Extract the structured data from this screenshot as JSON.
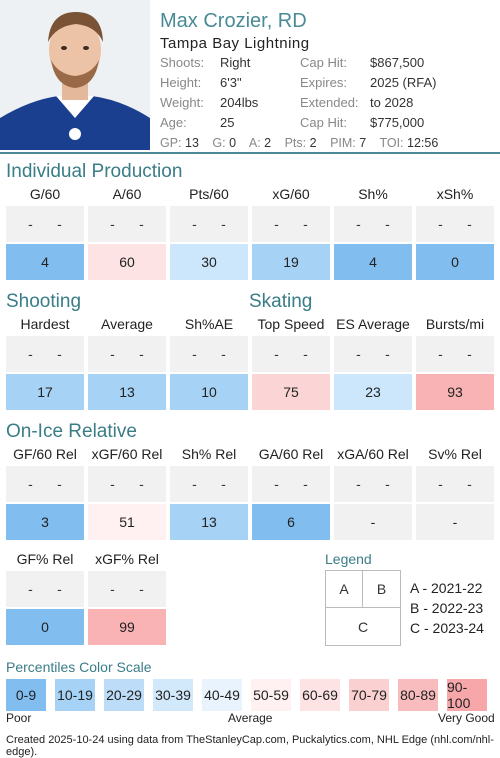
{
  "player": {
    "name": "Max Crozier, RD",
    "team": "Tampa Bay Lightning",
    "shoots_label": "Shoots:",
    "shoots": "Right",
    "height_label": "Height:",
    "height": "6'3\"",
    "weight_label": "Weight:",
    "weight": "204lbs",
    "age_label": "Age:",
    "age": "25",
    "caphit1_label": "Cap Hit:",
    "caphit1": "$867,500",
    "expires_label": "Expires:",
    "expires": "2025 (RFA)",
    "extended_label": "Extended:",
    "extended": "to 2028",
    "caphit2_label": "Cap Hit:",
    "caphit2": "$775,000"
  },
  "statline": {
    "gp_label": "GP:",
    "gp": "13",
    "g_label": "G:",
    "g": "0",
    "a_label": "A:",
    "a": "2",
    "pts_label": "Pts:",
    "pts": "2",
    "pim_label": "PIM:",
    "pim": "7",
    "toi_label": "TOI:",
    "toi": "12:56"
  },
  "sections": {
    "individual": "Individual Production",
    "shooting": "Shooting",
    "skating": "Skating",
    "onice": "On-Ice Relative"
  },
  "individual": [
    {
      "label": "G/60",
      "a": "-",
      "b": "-",
      "value": "4",
      "color": "#82bdf0"
    },
    {
      "label": "A/60",
      "a": "-",
      "b": "-",
      "value": "60",
      "color": "#fde3e3"
    },
    {
      "label": "Pts/60",
      "a": "-",
      "b": "-",
      "value": "30",
      "color": "#cce6fb"
    },
    {
      "label": "xG/60",
      "a": "-",
      "b": "-",
      "value": "19",
      "color": "#a6d2f6"
    },
    {
      "label": "Sh%",
      "a": "-",
      "b": "-",
      "value": "4",
      "color": "#82bdf0"
    },
    {
      "label": "xSh%",
      "a": "-",
      "b": "-",
      "value": "0",
      "color": "#82bdf0"
    }
  ],
  "shooting_skating": [
    {
      "label": "Hardest",
      "a": "-",
      "b": "-",
      "value": "17",
      "color": "#a6d2f6"
    },
    {
      "label": "Average",
      "a": "-",
      "b": "-",
      "value": "13",
      "color": "#a6d2f6"
    },
    {
      "label": "Sh%AE",
      "a": "-",
      "b": "-",
      "value": "10",
      "color": "#a6d2f6"
    },
    {
      "label": "Top Speed",
      "a": "-",
      "b": "-",
      "value": "75",
      "color": "#fbd5d5"
    },
    {
      "label": "ES Average",
      "a": "-",
      "b": "-",
      "value": "23",
      "color": "#cce6fb"
    },
    {
      "label": "Bursts/mi",
      "a": "-",
      "b": "-",
      "value": "93",
      "color": "#f9b3b5"
    }
  ],
  "onice": [
    {
      "label": "GF/60 Rel",
      "a": "-",
      "b": "-",
      "value": "3",
      "color": "#82bdf0"
    },
    {
      "label": "xGF/60 Rel",
      "a": "-",
      "b": "-",
      "value": "51",
      "color": "#fff1f1"
    },
    {
      "label": "Sh% Rel",
      "a": "-",
      "b": "-",
      "value": "13",
      "color": "#a6d2f6"
    },
    {
      "label": "GA/60 Rel",
      "a": "-",
      "b": "-",
      "value": "6",
      "color": "#82bdf0"
    },
    {
      "label": "xGA/60 Rel",
      "a": "-",
      "b": "-",
      "value": "-",
      "color": "#f1f1f1"
    },
    {
      "label": "Sv% Rel",
      "a": "-",
      "b": "-",
      "value": "-",
      "color": "#f1f1f1"
    }
  ],
  "onice2": [
    {
      "label": "GF% Rel",
      "a": "-",
      "b": "-",
      "value": "0",
      "color": "#82bdf0"
    },
    {
      "label": "xGF% Rel",
      "a": "-",
      "b": "-",
      "value": "99",
      "color": "#f9b3b5"
    }
  ],
  "legend": {
    "title": "Legend",
    "a": "A",
    "b": "B",
    "c": "C",
    "a_text": "A - 2021-22",
    "b_text": "B - 2022-23",
    "c_text": "C - 2023-24"
  },
  "scale": {
    "title": "Percentiles Color Scale",
    "cells": [
      {
        "label": "0-9",
        "color": "#82bdf0"
      },
      {
        "label": "10-19",
        "color": "#a6d2f6"
      },
      {
        "label": "20-29",
        "color": "#bcdcf8"
      },
      {
        "label": "30-39",
        "color": "#d2e8fb"
      },
      {
        "label": "40-49",
        "color": "#e8f3fd"
      },
      {
        "label": "50-59",
        "color": "#fff1f1"
      },
      {
        "label": "60-69",
        "color": "#fde3e3"
      },
      {
        "label": "70-79",
        "color": "#fbd0d1"
      },
      {
        "label": "80-89",
        "color": "#f9bcbe"
      },
      {
        "label": "90-100",
        "color": "#f7a7aa"
      }
    ],
    "poor": "Poor",
    "average": "Average",
    "very_good": "Very Good"
  },
  "footer": "Created 2025-10-24 using data from TheStanleyCap.com, Puckalytics.com, NHL Edge (nhl.com/nhl-edge)."
}
